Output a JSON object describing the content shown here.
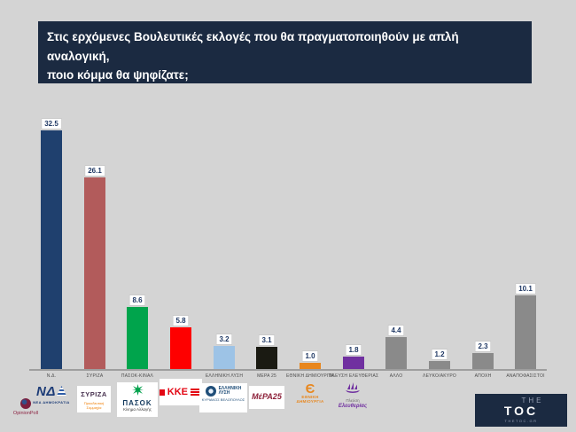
{
  "question": {
    "line1": "Στις ερχόμενες Βουλευτικές εκλογές που θα πραγματοποιηθούν με απλή αναλογική,",
    "line2": "ποιο κόμμα θα ψηφίζατε;"
  },
  "chart_data": {
    "type": "bar",
    "title": "Στις ερχόμενες Βουλευτικές εκλογές που θα πραγματοποιηθούν με απλή αναλογική, ποιο κόμμα θα ψηφίζατε;",
    "categories": [
      "Ν.Δ.",
      "ΣΥΡΙΖΑ",
      "ΠΑΣΟΚ-ΚΙΝΑΛ",
      "ΚΚΕ",
      "ΕΛΛΗΝΙΚΗ ΛΥΣΗ",
      "ΜΕΡΑ 25",
      "ΕΘΝΙΚΗ ΔΗΜΙΟΥΡΓΙΑ",
      "ΠΛΕΥΣΗ ΕΛΕΥΘΕΡΙΑΣ",
      "ΑΛΛΟ",
      "ΛΕΥΚΟ/ΑΚΥΡΟ",
      "ΑΠΟΧΗ",
      "ΑΝΑΠΟΦΑΣΙΣΤΟΙ"
    ],
    "values": [
      32.5,
      26.1,
      8.6,
      5.8,
      3.2,
      3.1,
      1.0,
      1.8,
      4.4,
      1.2,
      2.3,
      10.1
    ],
    "value_labels": [
      "32.5",
      "26.1",
      "8.6",
      "5.8",
      "3.2",
      "3.1",
      "1.0",
      "1.8",
      "4.4",
      "1.2",
      "2.3",
      "10.1"
    ],
    "x_tick_labels": [
      "Ν.Δ.",
      "ΣΥΡΙΖΑ",
      "ΠΑΣΟΚ-ΚΙΝΑΛ",
      "",
      "ΕΛΛΗΝΙΚΗ ΛΥΣΗ",
      "ΜΕΡΑ 25",
      "ΕΘΝΙΚΗ ΔΗΜΙΟΥΡΓΙΑ",
      "ΠΛΕΥΣΗ ΕΛΕΥΘΕΡΙΑΣ",
      "ΑΛΛΟ",
      "ΛΕΥΚΟ/ΑΚΥΡΟ",
      "ΑΠΟΧΗ",
      "ΑΝΑΠΟΦΑΣΙΣΤΟΙ"
    ],
    "bar_colors": [
      "#1f406e",
      "#b25b5b",
      "#00a44c",
      "#fe0000",
      "#9dc3e6",
      "#1a1a12",
      "#e8861c",
      "#7030a0",
      "#8a8a8a",
      "#8a8a8a",
      "#8a8a8a",
      "#8a8a8a"
    ],
    "ylim": [
      0,
      35
    ],
    "grid": false,
    "legend": false,
    "value_label_style": "white boxes above bars"
  },
  "logos": {
    "nd": {
      "mark": "ΝΔ",
      "sub": "ΝΕΑ ΔΗΜΟΚΡΑΤΙΑ"
    },
    "syriza": {
      "mark": "ΣΥΡΙΖΑ",
      "sub": "Προοδευτική Συμμαχία"
    },
    "pasok": {
      "mark": "ΠΑΣΟΚ",
      "sub": "Κίνημα Αλλαγής"
    },
    "kke": {
      "mark": "ΚΚΕ"
    },
    "elliniki_lysi": {
      "line1": "ΕΛΛΗΝΙΚΗ",
      "line2": "ΛΥΣΗ",
      "sub": "ΚΥΡΙΑΚΟΣ ΒΕΛΟΠΟΥΛΟΣ"
    },
    "mera25": {
      "mark": "ΜέΡΑ25"
    },
    "ethniki_dimiourgia": {
      "symbol": "Є",
      "line1": "ΕΘΝΙΚΗ",
      "line2": "ΔΗΜΙΟΥΡΓΙΑ"
    },
    "plefsi_eleftherias": {
      "line1": "Πλεύση",
      "line2": "Ελευθερίας"
    }
  },
  "branding": {
    "pollster": "OpinionPoll",
    "media": {
      "the": "THE",
      "toc": "TOC",
      "domain": "THETOC.GR"
    }
  },
  "theme": {
    "background": "#d4d4d4",
    "panel_navy": "#1b2a41",
    "value_text": "#1f3864",
    "axis_line": "#9e9e9e"
  }
}
